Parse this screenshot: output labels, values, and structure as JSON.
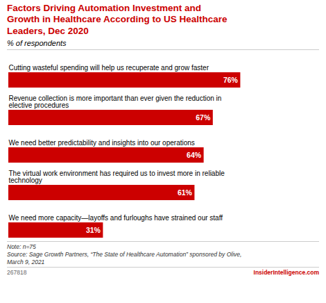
{
  "chart_data": {
    "type": "bar",
    "orientation": "horizontal",
    "title": "Factors Driving Automation Investment and\nGrowth in Healthcare According to US Healthcare\nLeaders, Dec 2020",
    "subtitle": "% of respondents",
    "categories": [
      "Cutting wasteful spending will help us recuperate and grow faster",
      "Revenue collection is more important than ever given the reduction in\nelective procedures",
      "We need better predictability and insights into our operations",
      "The virtual work environment has required us to invest more in reliable\ntechnology",
      "We need more capacity—layoffs and furloughs have strained our staff"
    ],
    "values": [
      76,
      67,
      64,
      61,
      31
    ],
    "value_labels": [
      "76%",
      "67%",
      "64%",
      "61%",
      "31%"
    ],
    "data_labels": true,
    "color": "#cc0000",
    "xlim": [
      0,
      100
    ],
    "tick_labels": false,
    "grid": false,
    "notes": [
      "Note: n=75",
      "Source: Sage Growth Partners, “The State of Healthcare Automation” sponsored by Olive,",
      "March 9, 2021"
    ],
    "footer_left": "267818",
    "footer_right": "InsiderIntelligence.com"
  }
}
